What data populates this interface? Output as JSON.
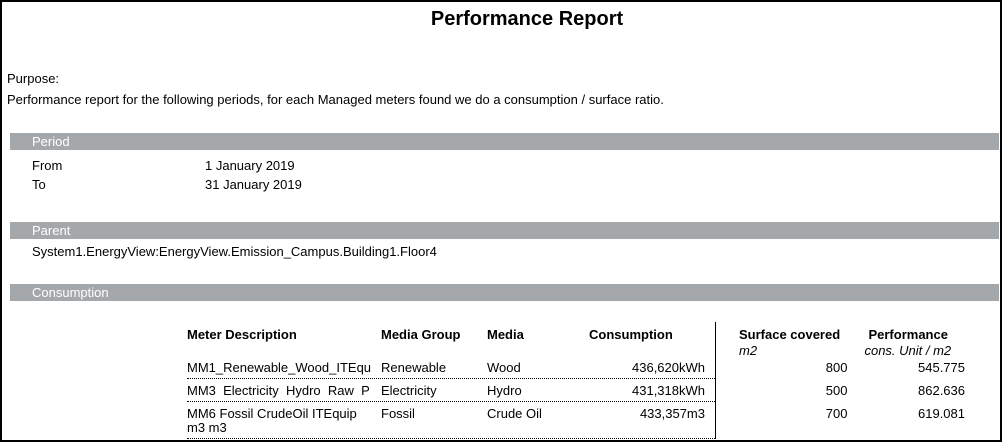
{
  "colors": {
    "section_bar": "#a5a8aa",
    "section_bar_text": "#ffffff"
  },
  "page": {
    "title": "Performance Report",
    "purpose_label": "Purpose:",
    "purpose_text": "Performance report for the following periods, for each Managed meters found we do a consumption / surface ratio."
  },
  "period": {
    "heading": "Period",
    "from_label": "From",
    "from_value": "1 January 2019",
    "to_label": "To",
    "to_value": "31 January 2019"
  },
  "parent": {
    "heading": "Parent",
    "path": "System1.EnergyView:EnergyView.Emission_Campus.Building1.Floor4"
  },
  "consumption": {
    "heading": "Consumption",
    "table": {
      "columns": [
        "Meter Description",
        "Media Group",
        "Media",
        "Consumption",
        "Surface covered",
        "Performance"
      ],
      "subheaders": {
        "surface_unit": "m2",
        "performance_unit": "cons. Unit / m2"
      },
      "rows": [
        {
          "meter": "MM1_Renewable_Wood_ITEqu",
          "media_group": "Renewable",
          "media": "Wood",
          "consumption": "436,620kWh",
          "surface": "800",
          "performance": "545.775"
        },
        {
          "meter": "MM3  Electricity  Hydro  Raw  P",
          "media_group": "Electricity",
          "media": "Hydro",
          "consumption": "431,318kWh",
          "surface": "500",
          "performance": "862.636"
        },
        {
          "meter": "MM6 Fossil CrudeOil ITEquip\nm3 m3",
          "media_group": "Fossil",
          "media": "Crude Oil",
          "consumption": "433,357m3",
          "surface": "700",
          "performance": "619.081"
        }
      ]
    }
  }
}
